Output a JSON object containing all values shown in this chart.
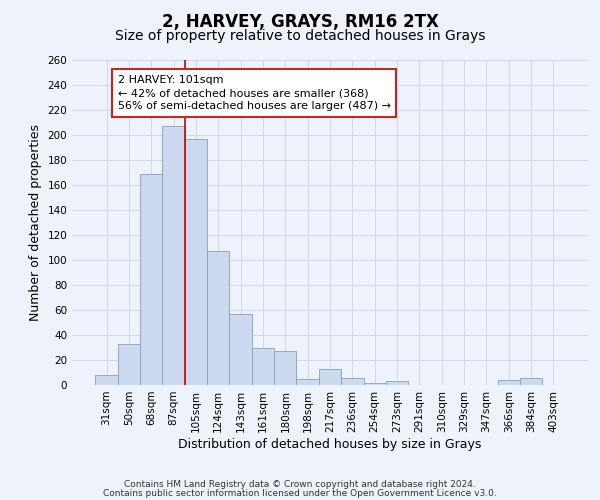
{
  "title": "2, HARVEY, GRAYS, RM16 2TX",
  "subtitle": "Size of property relative to detached houses in Grays",
  "xlabel": "Distribution of detached houses by size in Grays",
  "ylabel": "Number of detached properties",
  "categories": [
    "31sqm",
    "50sqm",
    "68sqm",
    "87sqm",
    "105sqm",
    "124sqm",
    "143sqm",
    "161sqm",
    "180sqm",
    "198sqm",
    "217sqm",
    "236sqm",
    "254sqm",
    "273sqm",
    "291sqm",
    "310sqm",
    "329sqm",
    "347sqm",
    "366sqm",
    "384sqm",
    "403sqm"
  ],
  "values": [
    8,
    33,
    169,
    207,
    197,
    107,
    57,
    30,
    27,
    5,
    13,
    6,
    2,
    3,
    0,
    0,
    0,
    0,
    4,
    6
  ],
  "bar_color": "#ccd9ee",
  "bar_edge_color": "#7ba3cc",
  "red_line_color": "#cc0000",
  "red_line_index": 4,
  "annotation_line1": "2 HARVEY: 101sqm",
  "annotation_line2": "← 42% of detached houses are smaller (368)",
  "annotation_line3": "56% of semi-detached houses are larger (487) →",
  "annotation_box_color": "#ffffff",
  "annotation_box_edge_color": "#cc2222",
  "ylim": [
    0,
    260
  ],
  "yticks": [
    0,
    20,
    40,
    60,
    80,
    100,
    120,
    140,
    160,
    180,
    200,
    220,
    240,
    260
  ],
  "grid_color": "#d0d9ea",
  "footer1": "Contains HM Land Registry data © Crown copyright and database right 2024.",
  "footer2": "Contains public sector information licensed under the Open Government Licence v3.0.",
  "title_fontsize": 12,
  "subtitle_fontsize": 10,
  "label_fontsize": 9,
  "tick_fontsize": 7.5,
  "ann_fontsize": 8,
  "footer_fontsize": 6.5,
  "bg_color": "#eef2fa"
}
